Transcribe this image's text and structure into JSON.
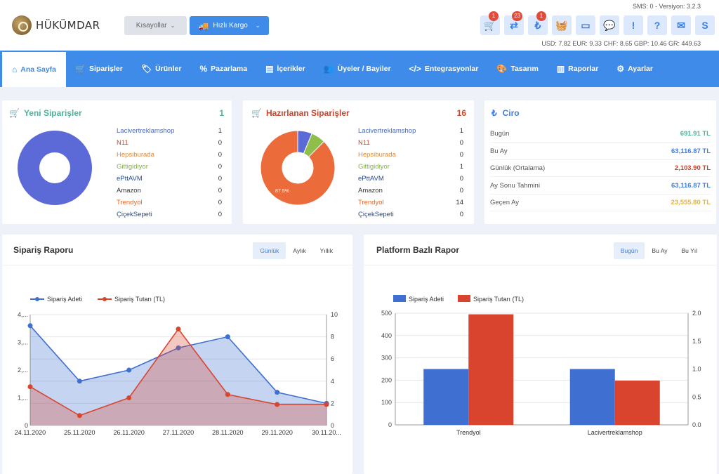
{
  "brand": {
    "name": "HÜKÜMDAR"
  },
  "header": {
    "shortcuts_label": "Kısayollar",
    "cargo_label": "Hızlı Kargo",
    "sms_version": "SMS: 0 - Versiyon: 3.2.3",
    "rates": "USD: 7.82 EUR: 9.33 CHF: 8.65 GBP: 10.46 GR: 449.63",
    "icons": [
      {
        "name": "cart-icon",
        "glyph": "🛒",
        "badge": "1"
      },
      {
        "name": "repeat-icon",
        "glyph": "⇄",
        "badge": "23"
      },
      {
        "name": "lira-icon",
        "glyph": "₺",
        "badge": "1"
      },
      {
        "name": "basket-icon",
        "glyph": "🧺",
        "badge": ""
      },
      {
        "name": "credit-card-icon",
        "glyph": "▭",
        "badge": ""
      },
      {
        "name": "chat-icon",
        "glyph": "💬",
        "badge": ""
      },
      {
        "name": "alert-icon",
        "glyph": "!",
        "badge": ""
      },
      {
        "name": "help-icon",
        "glyph": "?",
        "badge": ""
      },
      {
        "name": "mail-icon",
        "glyph": "✉",
        "badge": ""
      },
      {
        "name": "s-icon",
        "glyph": "S",
        "badge": ""
      }
    ]
  },
  "nav": [
    {
      "label": "Ana Sayfa",
      "icon": "⌂",
      "active": true
    },
    {
      "label": "Siparişler",
      "icon": "🛒"
    },
    {
      "label": "Ürünler",
      "icon": "🏷"
    },
    {
      "label": "Pazarlama",
      "icon": "%"
    },
    {
      "label": "İçerikler",
      "icon": "▤"
    },
    {
      "label": "Üyeler / Bayiler",
      "icon": "👥"
    },
    {
      "label": "Entegrasyonlar",
      "icon": "</>"
    },
    {
      "label": "Tasarım",
      "icon": "🎨"
    },
    {
      "label": "Raporlar",
      "icon": "▥"
    },
    {
      "label": "Ayarlar",
      "icon": "⚙"
    }
  ],
  "new_orders": {
    "title": "Yeni Siparişler",
    "count": "1",
    "color": "#4ab59a",
    "items": [
      {
        "name": "Lacivertreklamshop",
        "value": "1",
        "color": "#4a68b8"
      },
      {
        "name": "N11",
        "value": "0",
        "color": "#c6452e"
      },
      {
        "name": "Hepsiburada",
        "value": "0",
        "color": "#e08a3a"
      },
      {
        "name": "Gittigidiyor",
        "value": "0",
        "color": "#7fb23f"
      },
      {
        "name": "ePttAVM",
        "value": "0",
        "color": "#2a4a8a"
      },
      {
        "name": "Amazon",
        "value": "0",
        "color": "#333333"
      },
      {
        "name": "Trendyol",
        "value": "0",
        "color": "#e0692e"
      },
      {
        "name": "ÇiçekSepeti",
        "value": "0",
        "color": "#2a4a8a"
      }
    ]
  },
  "prep_orders": {
    "title": "Hazırlanan Siparişler",
    "count": "16",
    "color": "#c6452e",
    "pie_label": "87.5%",
    "items": [
      {
        "name": "Lacivertreklamshop",
        "value": "1",
        "color": "#4a68b8"
      },
      {
        "name": "N11",
        "value": "0",
        "color": "#c6452e"
      },
      {
        "name": "Hepsiburada",
        "value": "0",
        "color": "#e08a3a"
      },
      {
        "name": "Gittigidiyor",
        "value": "1",
        "color": "#7fb23f"
      },
      {
        "name": "ePttAVM",
        "value": "0",
        "color": "#2a4a8a"
      },
      {
        "name": "Amazon",
        "value": "0",
        "color": "#333333"
      },
      {
        "name": "Trendyol",
        "value": "14",
        "color": "#e0692e"
      },
      {
        "name": "ÇiçekSepeti",
        "value": "0",
        "color": "#2a4a8a"
      }
    ]
  },
  "revenue": {
    "title": "Ciro",
    "icon": "₺",
    "rows": [
      {
        "label": "Bugün",
        "value": "691.91 TL",
        "color": "#4ab59a"
      },
      {
        "label": "Bu Ay",
        "value": "63,116.87 TL",
        "color": "#3f7fdf"
      },
      {
        "label": "Günlük (Ortalama)",
        "value": "2,103.90 TL",
        "color": "#c6452e"
      },
      {
        "label": "Ay Sonu Tahmini",
        "value": "63,116.87 TL",
        "color": "#3f7fdf"
      },
      {
        "label": "Geçen Ay",
        "value": "23,555.80 TL",
        "color": "#e8b33a"
      }
    ]
  },
  "order_report": {
    "title": "Sipariş Raporu",
    "tabs": [
      "Günlük",
      "Aylık",
      "Yıllık"
    ]
  },
  "platform_report": {
    "title": "Platform Bazlı Rapor",
    "tabs": [
      "Bugün",
      "Bu Ay",
      "Bu Yıl"
    ]
  },
  "chart_data": [
    {
      "type": "pie",
      "labels": [
        "Lacivertreklamshop"
      ],
      "values": [
        1
      ],
      "colors": [
        "#5c6ad8"
      ]
    },
    {
      "type": "pie",
      "labels": [
        "Lacivertreklamshop",
        "Gittigidiyor",
        "Trendyol"
      ],
      "values": [
        1,
        1,
        14
      ],
      "colors": [
        "#5c6ad8",
        "#8fbf4a",
        "#ec6b3a"
      ]
    },
    {
      "type": "area",
      "x": [
        "24.11.2020",
        "25.11.2020",
        "26.11.2020",
        "27.11.2020",
        "28.11.2020",
        "29.11.2020",
        "30.11.20..."
      ],
      "series": [
        {
          "name": "Sipariş Adeti",
          "axis": "left",
          "color": "#3f6fd0",
          "values": [
            3.6,
            1.6,
            2.0,
            2.8,
            3.2,
            1.2,
            0.8
          ]
        },
        {
          "name": "Sipariş Tutarı (TL)",
          "axis": "right",
          "color": "#d9442f",
          "values": [
            3.5,
            0.9,
            2.5,
            8.7,
            2.8,
            1.9,
            1.9
          ]
        }
      ],
      "y_left_ticks": [
        "0",
        "1,...",
        "2,...",
        "3,...",
        "4,..."
      ],
      "y_right_ticks": [
        "0",
        "2",
        "4",
        "6",
        "8",
        "10"
      ],
      "ylim_left": [
        0,
        4
      ],
      "ylim_right": [
        0,
        10
      ],
      "grid": true,
      "legend": "top-left"
    },
    {
      "type": "bar",
      "categories": [
        "Trendyol",
        "Lacivertreklamshop"
      ],
      "series": [
        {
          "name": "Sipariş Adeti",
          "axis": "right",
          "color": "#3f6fd0",
          "values": [
            1,
            1
          ]
        },
        {
          "name": "Sipariş Tutarı (TL)",
          "axis": "left",
          "color": "#d9442f",
          "values": [
            495,
            198
          ]
        }
      ],
      "y_left_ticks": [
        "0",
        "100",
        "200",
        "300",
        "400",
        "500"
      ],
      "y_right_ticks": [
        "0.0",
        "0.5",
        "1.0",
        "1.5",
        "2.0"
      ],
      "ylim_left": [
        0,
        500
      ],
      "ylim_right": [
        0,
        2
      ],
      "grid": true,
      "legend": "top-left"
    }
  ]
}
